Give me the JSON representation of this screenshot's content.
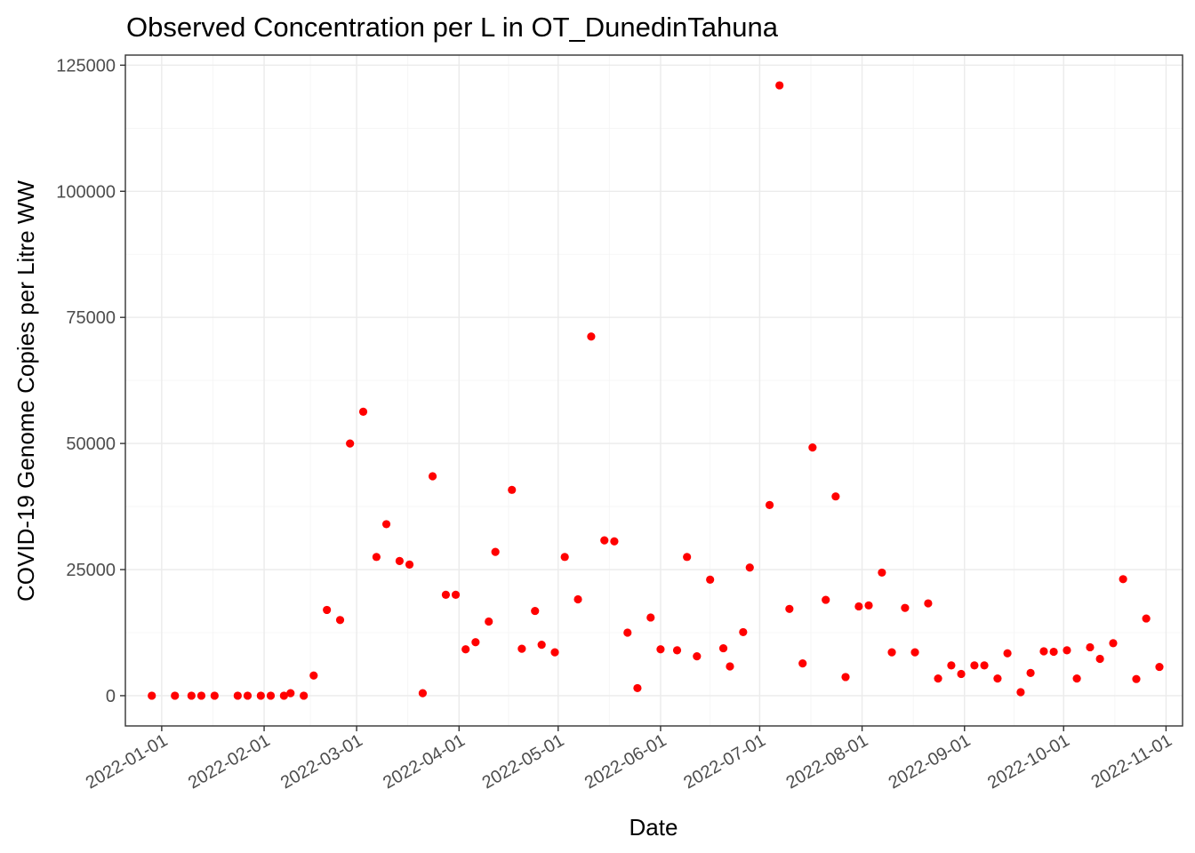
{
  "chart_data": {
    "type": "scatter",
    "title": "Observed Concentration per L in OT_DunedinTahuna",
    "xlabel": "Date",
    "ylabel": "COVID-19 Genome Copies per Litre WW",
    "x_type": "date",
    "xlim": [
      "2021-12-21",
      "2022-11-06"
    ],
    "ylim": [
      -6000,
      127000
    ],
    "x_ticks": [
      "2022-01-01",
      "2022-02-01",
      "2022-03-01",
      "2022-04-01",
      "2022-05-01",
      "2022-06-01",
      "2022-07-01",
      "2022-08-01",
      "2022-09-01",
      "2022-10-01",
      "2022-11-01"
    ],
    "y_ticks": [
      0,
      25000,
      50000,
      75000,
      100000,
      125000
    ],
    "y_tick_labels": [
      "0",
      "25000",
      "50000",
      "75000",
      "100000",
      "125000"
    ],
    "grid": true,
    "legend": "none",
    "point_color": "#ff0000",
    "series": [
      {
        "x": [
          "2021-12-29",
          "2022-01-05",
          "2022-01-10",
          "2022-01-13",
          "2022-01-17",
          "2022-01-24",
          "2022-01-27",
          "2022-01-31",
          "2022-02-03",
          "2022-02-07",
          "2022-02-09",
          "2022-02-13",
          "2022-02-16",
          "2022-02-20",
          "2022-02-24",
          "2022-02-27",
          "2022-03-03",
          "2022-03-07",
          "2022-03-10",
          "2022-03-14",
          "2022-03-17",
          "2022-03-21",
          "2022-03-24",
          "2022-03-28",
          "2022-03-31",
          "2022-04-03",
          "2022-04-06",
          "2022-04-10",
          "2022-04-12",
          "2022-04-17",
          "2022-04-20",
          "2022-04-24",
          "2022-04-26",
          "2022-04-30",
          "2022-05-03",
          "2022-05-07",
          "2022-05-11",
          "2022-05-15",
          "2022-05-18",
          "2022-05-22",
          "2022-05-25",
          "2022-05-29",
          "2022-06-01",
          "2022-06-06",
          "2022-06-09",
          "2022-06-12",
          "2022-06-16",
          "2022-06-20",
          "2022-06-22",
          "2022-06-26",
          "2022-06-28",
          "2022-07-04",
          "2022-07-07",
          "2022-07-10",
          "2022-07-14",
          "2022-07-17",
          "2022-07-21",
          "2022-07-24",
          "2022-07-27",
          "2022-07-31",
          "2022-08-03",
          "2022-08-07",
          "2022-08-10",
          "2022-08-14",
          "2022-08-17",
          "2022-08-21",
          "2022-08-24",
          "2022-08-28",
          "2022-08-31",
          "2022-09-04",
          "2022-09-07",
          "2022-09-11",
          "2022-09-14",
          "2022-09-18",
          "2022-09-21",
          "2022-09-25",
          "2022-09-28",
          "2022-10-02",
          "2022-10-05",
          "2022-10-09",
          "2022-10-12",
          "2022-10-16",
          "2022-10-19",
          "2022-10-23",
          "2022-10-26",
          "2022-10-30"
        ],
        "y": [
          0,
          0,
          0,
          0,
          0,
          0,
          0,
          0,
          0,
          0,
          500,
          0,
          4000,
          17000,
          15000,
          50000,
          56300,
          27500,
          34000,
          26700,
          26000,
          500,
          43500,
          20000,
          20000,
          9200,
          10600,
          14700,
          28500,
          40800,
          9300,
          16800,
          10100,
          8600,
          27500,
          19100,
          71200,
          30800,
          30600,
          12500,
          1500,
          15500,
          9200,
          9000,
          27500,
          7800,
          23000,
          9400,
          5800,
          12600,
          25400,
          37800,
          121000,
          17200,
          6400,
          49200,
          19000,
          39500,
          3700,
          17700,
          17900,
          24400,
          8600,
          17400,
          8600,
          18300,
          3400,
          6000,
          4300,
          6000,
          6000,
          3400,
          8400,
          700,
          4500,
          8800,
          8700,
          9000,
          3400,
          9600,
          7300,
          10400,
          23100,
          3300,
          15300,
          5700
        ]
      }
    ]
  }
}
